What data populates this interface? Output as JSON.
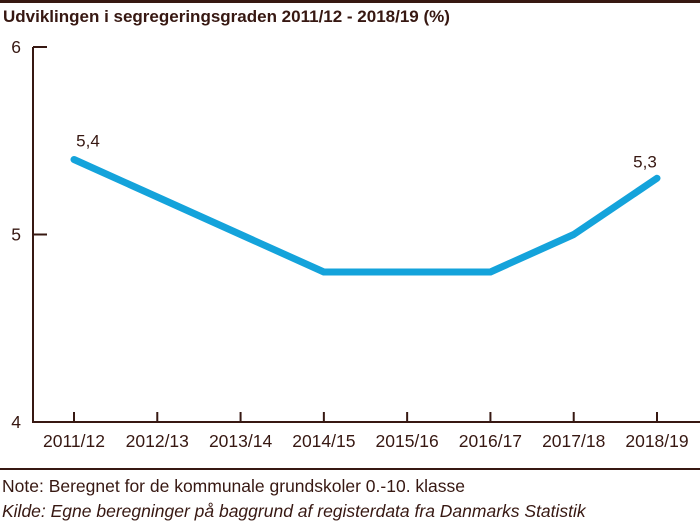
{
  "title": "Udviklingen i segregeringsgraden 2011/12 - 2018/19 (%)",
  "colors": {
    "line": "#14a3db",
    "text": "#371812",
    "axis": "#371812",
    "background": "#ffffff"
  },
  "chart_data": {
    "type": "line",
    "title": "Udviklingen i segregeringsgraden 2011/12 - 2018/19 (%)",
    "categories": [
      "2011/12",
      "2012/13",
      "2013/14",
      "2014/15",
      "2015/16",
      "2016/17",
      "2017/18",
      "2018/19"
    ],
    "values": [
      5.4,
      5.2,
      5.0,
      4.8,
      4.8,
      4.8,
      5.0,
      5.3
    ],
    "xlabel": "",
    "ylabel": "",
    "ylim": [
      4,
      6
    ],
    "yticks": [
      4,
      5,
      6
    ],
    "ytick_labels": [
      "4",
      "5",
      "6"
    ],
    "grid": false,
    "legend": false,
    "point_labels": [
      {
        "index": 0,
        "text": "5,4"
      },
      {
        "index": 7,
        "text": "5,3"
      }
    ]
  },
  "notes": {
    "note": "Note: Beregnet for de kommunale grundskoler 0.-10. klasse",
    "source": "Kilde: Egne beregninger på baggrund af registerdata fra Danmarks Statistik"
  }
}
